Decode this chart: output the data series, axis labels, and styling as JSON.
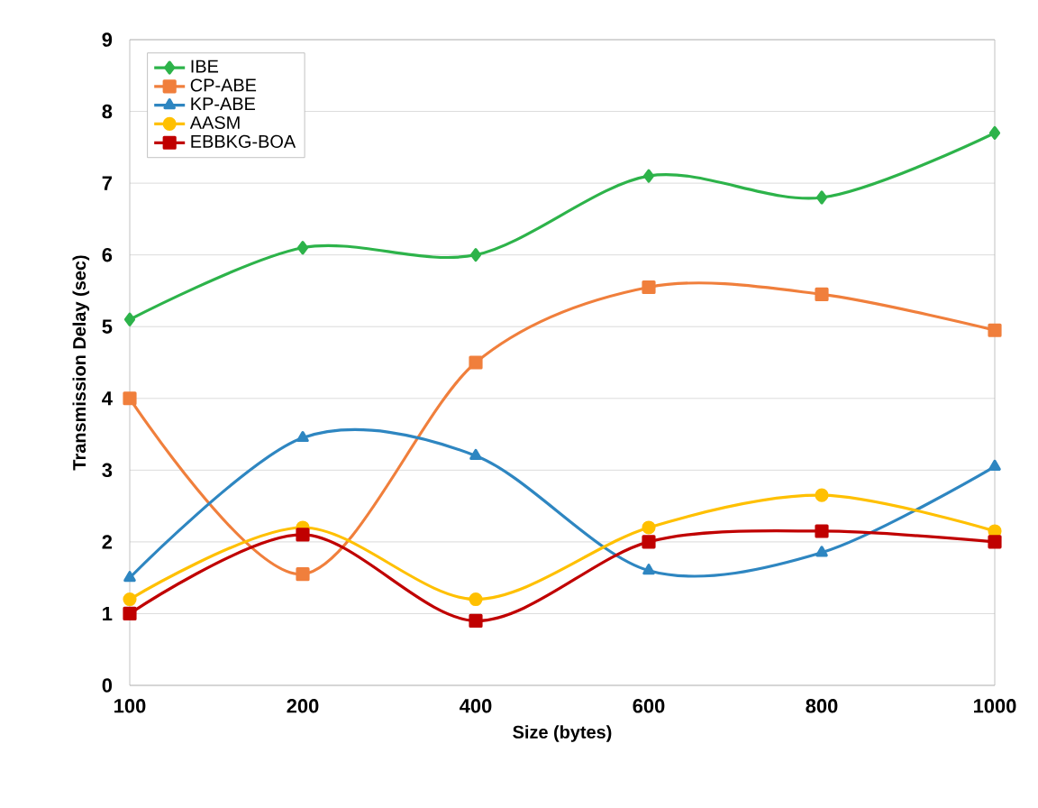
{
  "chart_data": {
    "type": "line",
    "xlabel": "Size (bytes)",
    "ylabel": "Transmission Delay (sec)",
    "categories": [
      "100",
      "200",
      "400",
      "600",
      "800",
      "1000"
    ],
    "series": [
      {
        "name": "IBE",
        "color": "#2db34a",
        "marker": "diamond",
        "values": [
          5.1,
          6.1,
          6.0,
          7.1,
          6.8,
          7.7
        ]
      },
      {
        "name": "CP-ABE",
        "color": "#f07f3c",
        "marker": "square",
        "values": [
          4.0,
          1.55,
          4.5,
          5.55,
          5.45,
          4.95
        ]
      },
      {
        "name": "KP-ABE",
        "color": "#2e86c1",
        "marker": "triangle",
        "values": [
          1.5,
          3.45,
          3.2,
          1.6,
          1.85,
          3.05
        ]
      },
      {
        "name": "AASM",
        "color": "#ffc000",
        "marker": "circle",
        "values": [
          1.2,
          2.2,
          1.2,
          2.2,
          2.65,
          2.15
        ]
      },
      {
        "name": "EBBKG-BOA",
        "color": "#c00000",
        "marker": "square",
        "values": [
          1.0,
          2.1,
          0.9,
          2.0,
          2.15,
          2.0
        ]
      }
    ],
    "ylim": [
      0,
      9
    ],
    "yticks": [
      0,
      1,
      2,
      3,
      4,
      5,
      6,
      7,
      8,
      9
    ],
    "grid": "y",
    "legend": "top left",
    "line_style": "solid"
  }
}
